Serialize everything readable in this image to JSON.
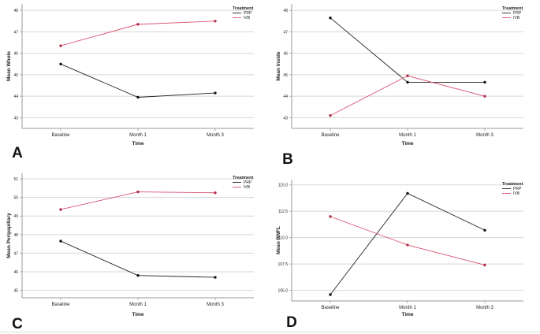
{
  "colors": {
    "prp": "#222222",
    "ivb": "#d9536f",
    "grid": "#d6d6d6",
    "axis": "#9a9a9a",
    "text": "#222222"
  },
  "panels": [
    {
      "letter": "A",
      "chart_data": {
        "type": "line",
        "title": "",
        "xlabel": "Time",
        "ylabel": "Mean Whole",
        "categories": [
          "Baseline",
          "Month 1",
          "Month 3"
        ],
        "ylim": [
          42.5,
          48.3
        ],
        "yticks": [
          43,
          44,
          45,
          46,
          47,
          48
        ],
        "ytick_labels": [
          "43",
          "44",
          "45",
          "46",
          "47",
          "48"
        ],
        "legend": {
          "title": "Treatment",
          "position": "top-right",
          "entries": [
            "PRP",
            "IVB"
          ]
        },
        "series": [
          {
            "name": "PRP",
            "values": [
              45.5,
              43.95,
              44.15
            ]
          },
          {
            "name": "IVB",
            "values": [
              46.35,
              47.35,
              47.5
            ]
          }
        ]
      }
    },
    {
      "letter": "B",
      "chart_data": {
        "type": "line",
        "title": "",
        "xlabel": "Time",
        "ylabel": "Mean Inside",
        "categories": [
          "Baseline",
          "Month 1",
          "Month 3"
        ],
        "ylim": [
          42.5,
          48.3
        ],
        "yticks": [
          43,
          44,
          45,
          46,
          47,
          48
        ],
        "ytick_labels": [
          "43",
          "44",
          "45",
          "46",
          "47",
          "48"
        ],
        "legend": {
          "title": "Treatment",
          "position": "top-right",
          "entries": [
            "PRP",
            "IVB"
          ]
        },
        "series": [
          {
            "name": "PRP",
            "values": [
              47.65,
              44.65,
              44.65
            ]
          },
          {
            "name": "IVB",
            "values": [
              43.1,
              44.95,
              44.0
            ]
          }
        ]
      }
    },
    {
      "letter": "C",
      "chart_data": {
        "type": "line",
        "title": "",
        "xlabel": "Time",
        "ylabel": "Mean Peripapillary",
        "categories": [
          "Baseline",
          "Month 1",
          "Month 3"
        ],
        "ylim": [
          44.6,
          51.3
        ],
        "yticks": [
          45,
          46,
          47,
          48,
          49,
          50,
          51
        ],
        "ytick_labels": [
          "45",
          "46",
          "47",
          "48",
          "49",
          "50",
          "51"
        ],
        "legend": {
          "title": "Treatment",
          "position": "top-right",
          "entries": [
            "PRP",
            "IVB"
          ]
        },
        "series": [
          {
            "name": "PRP",
            "values": [
              47.65,
              45.8,
              45.7
            ]
          },
          {
            "name": "IVB",
            "values": [
              49.35,
              50.3,
              50.25
            ]
          }
        ]
      }
    },
    {
      "letter": "D",
      "chart_data": {
        "type": "line",
        "title": "",
        "xlabel": "Time",
        "ylabel": "Mean RNFL",
        "categories": [
          "Baseline",
          "Month 1",
          "Month 3"
        ],
        "ylim": [
          104.0,
          115.5
        ],
        "yticks": [
          105.0,
          107.5,
          110.0,
          112.5,
          115.0
        ],
        "ytick_labels": [
          "105.0",
          "107.5",
          "110.0",
          "112.5",
          "115.0"
        ],
        "legend": {
          "title": "Treatment",
          "position": "top-right",
          "entries": [
            "PRP",
            "IVB"
          ]
        },
        "series": [
          {
            "name": "PRP",
            "values": [
              104.6,
              114.2,
              110.7
            ]
          },
          {
            "name": "IVB",
            "values": [
              112.0,
              109.3,
              107.4
            ]
          }
        ]
      }
    }
  ]
}
